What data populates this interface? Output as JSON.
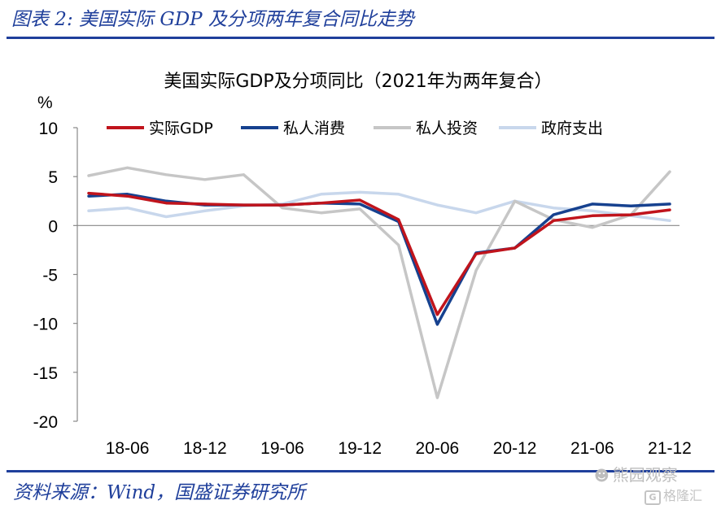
{
  "figure_title": "图表 2:  美国实际 GDP 及分项两年复合同比走势",
  "source": "资料来源：Wind，国盛证券研究所",
  "watermarks": {
    "wechat_account": "熊园观察",
    "wechat_icon": "wechat-icon",
    "platform": "格隆汇",
    "platform_icon": "gelonghui-logo-icon"
  },
  "chart_data": {
    "type": "line",
    "title": "美国实际GDP及分项同比（2021年为两年复合）",
    "ylabel": "%",
    "xlabel": "",
    "ylim": [
      -20,
      10
    ],
    "yticks": [
      10,
      5,
      0,
      -5,
      -10,
      -15,
      -20
    ],
    "x_tick_labels": [
      "18-06",
      "18-12",
      "19-06",
      "19-12",
      "20-06",
      "20-12",
      "21-06",
      "21-12"
    ],
    "x": [
      "18-03",
      "18-06",
      "18-09",
      "18-12",
      "19-03",
      "19-06",
      "19-09",
      "19-12",
      "20-03",
      "20-06",
      "20-09",
      "20-12",
      "21-03",
      "21-06",
      "21-09",
      "21-12"
    ],
    "legend_position": "top",
    "series": [
      {
        "name": "实际GDP",
        "color": "#c0141c",
        "values": [
          3.3,
          3.0,
          2.3,
          2.2,
          2.1,
          2.1,
          2.3,
          2.6,
          0.6,
          -9.1,
          -2.9,
          -2.3,
          0.5,
          1.0,
          1.1,
          1.6
        ]
      },
      {
        "name": "私人消费",
        "color": "#16418f",
        "values": [
          3.0,
          3.2,
          2.5,
          2.1,
          2.1,
          2.1,
          2.3,
          2.2,
          0.4,
          -10.1,
          -2.8,
          -2.3,
          1.1,
          2.2,
          2.0,
          2.2
        ]
      },
      {
        "name": "私人投资",
        "color": "#c6c6c6",
        "values": [
          5.1,
          5.9,
          5.2,
          4.7,
          5.2,
          1.8,
          1.3,
          1.7,
          -2.0,
          -17.6,
          -4.6,
          2.5,
          0.6,
          -0.2,
          1.1,
          5.5
        ]
      },
      {
        "name": "政府支出",
        "color": "#c8d7ec",
        "values": [
          1.5,
          1.8,
          0.9,
          1.5,
          2.0,
          2.2,
          3.2,
          3.4,
          3.2,
          2.1,
          1.3,
          2.5,
          1.8,
          1.5,
          1.0,
          0.5
        ]
      }
    ]
  }
}
